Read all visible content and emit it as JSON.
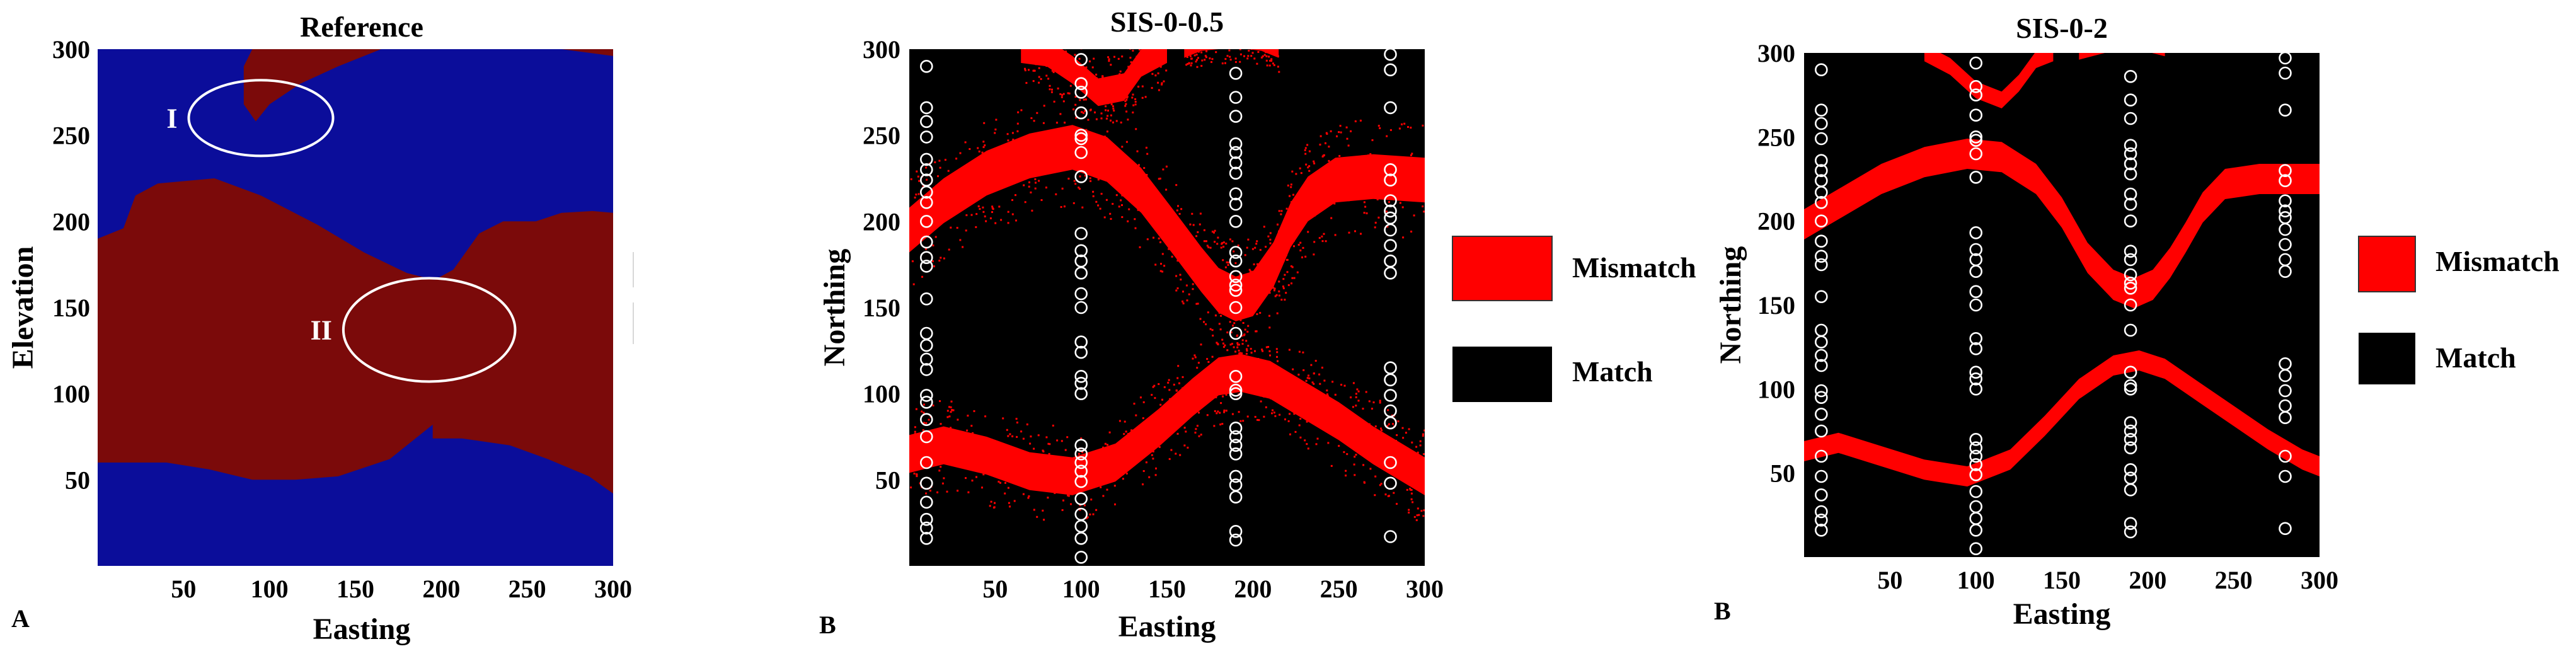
{
  "colors": {
    "blue_facies": "#0B0D9A",
    "red_facies": "#7B0A0A",
    "mismatch": "#FF0000",
    "match": "#000000",
    "wells": "#FFFFFF"
  },
  "panels": [
    {
      "id": "A",
      "letter": "A",
      "title": "Reference",
      "xlabel": "Easting",
      "ylabel": "Elevation",
      "xticks": [
        "50",
        "100",
        "150",
        "200",
        "250",
        "300"
      ],
      "yticks": [
        "50",
        "100",
        "150",
        "200",
        "250",
        "300"
      ],
      "regions": [
        {
          "label": "I",
          "center": [
            95,
            260
          ],
          "radius": [
            42,
            22
          ]
        },
        {
          "label": "II",
          "center": [
            193,
            137
          ],
          "radius": [
            50,
            30
          ]
        }
      ]
    },
    {
      "id": "B1",
      "letter": "B",
      "title": "SIS-0-0.5",
      "xlabel": "Easting",
      "ylabel": "Northing",
      "xticks": [
        "50",
        "100",
        "150",
        "200",
        "250",
        "300"
      ],
      "yticks": [
        "50",
        "100",
        "150",
        "200",
        "250",
        "300"
      ],
      "legend": [
        {
          "label": "Mismatch",
          "color": "#FF0000"
        },
        {
          "label": "Match",
          "color": "#000000"
        }
      ]
    },
    {
      "id": "B2",
      "letter": "B",
      "title": "SIS-0-2",
      "xlabel": "Easting",
      "ylabel": "Northing",
      "xticks": [
        "50",
        "100",
        "150",
        "200",
        "250",
        "300"
      ],
      "yticks": [
        "50",
        "100",
        "150",
        "200",
        "250",
        "300"
      ],
      "legend": [
        {
          "label": "Mismatch",
          "color": "#FF0000"
        },
        {
          "label": "Match",
          "color": "#000000"
        }
      ]
    }
  ],
  "chart_data": [
    {
      "type": "heatmap",
      "title": "Reference",
      "xlabel": "Easting",
      "ylabel": "Elevation",
      "xlim": [
        0,
        300
      ],
      "ylim": [
        0,
        300
      ],
      "categories": [
        "blue facies",
        "red facies"
      ],
      "annotations": [
        "I",
        "II"
      ],
      "red_regions": [
        {
          "name": "upper-left patch",
          "polygon": [
            [
              90,
              300
            ],
            [
              165,
              300
            ],
            [
              140,
              290
            ],
            [
              118,
              280
            ],
            [
              100,
              268
            ],
            [
              92,
              258
            ],
            [
              85,
              268
            ],
            [
              85,
              290
            ]
          ]
        },
        {
          "name": "upper-right strip",
          "polygon": [
            [
              270,
              300
            ],
            [
              300,
              300
            ],
            [
              300,
              296
            ]
          ]
        },
        {
          "name": "main body",
          "polygon": [
            [
              0,
              190
            ],
            [
              15,
              196
            ],
            [
              22,
              215
            ],
            [
              35,
              222
            ],
            [
              68,
              225
            ],
            [
              95,
              215
            ],
            [
              128,
              198
            ],
            [
              155,
              182
            ],
            [
              180,
              170
            ],
            [
              196,
              166
            ],
            [
              207,
              172
            ],
            [
              222,
              193
            ],
            [
              236,
              200
            ],
            [
              255,
              200
            ],
            [
              270,
              205
            ],
            [
              288,
              206
            ],
            [
              300,
              205
            ],
            [
              300,
              42
            ],
            [
              286,
              52
            ],
            [
              262,
              62
            ],
            [
              240,
              70
            ],
            [
              212,
              74
            ],
            [
              195,
              74
            ],
            [
              195,
              82
            ],
            [
              170,
              62
            ],
            [
              140,
              52
            ],
            [
              115,
              50
            ],
            [
              90,
              50
            ],
            [
              65,
              56
            ],
            [
              40,
              60
            ],
            [
              0,
              60
            ]
          ]
        }
      ]
    },
    {
      "type": "scatter",
      "title": "SIS-0-0.5",
      "xlabel": "Easting",
      "ylabel": "Northing",
      "xlim": [
        0,
        300
      ],
      "ylim": [
        0,
        300
      ],
      "legend": [
        "Mismatch",
        "Match"
      ],
      "mismatch_bands": [
        {
          "name": "top",
          "points": [
            [
              65,
              300
            ],
            [
              80,
              298
            ],
            [
              95,
              288
            ],
            [
              110,
              275
            ],
            [
              125,
              278
            ],
            [
              135,
              292
            ],
            [
              150,
              300
            ]
          ],
          "width": 16
        },
        {
          "name": "top-right",
          "points": [
            [
              160,
              300
            ],
            [
              170,
              304
            ],
            [
              190,
              306
            ],
            [
              205,
              304
            ],
            [
              215,
              300
            ]
          ],
          "width": 10
        },
        {
          "name": "upper",
          "points": [
            [
              0,
              195
            ],
            [
              20,
              212
            ],
            [
              45,
              228
            ],
            [
              70,
              238
            ],
            [
              95,
              243
            ],
            [
              115,
              236
            ],
            [
              135,
              218
            ],
            [
              155,
              192
            ],
            [
              170,
              172
            ],
            [
              180,
              160
            ],
            [
              190,
              155
            ],
            [
              200,
              158
            ],
            [
              212,
              175
            ],
            [
              222,
              198
            ],
            [
              232,
              213
            ],
            [
              248,
              224
            ],
            [
              270,
              226
            ],
            [
              300,
              224
            ]
          ],
          "width": 26
        },
        {
          "name": "lower",
          "points": [
            [
              0,
              65
            ],
            [
              20,
              70
            ],
            [
              45,
              64
            ],
            [
              70,
              55
            ],
            [
              95,
              52
            ],
            [
              120,
              60
            ],
            [
              145,
              80
            ],
            [
              165,
              98
            ],
            [
              180,
              110
            ],
            [
              193,
              112
            ],
            [
              210,
              108
            ],
            [
              230,
              96
            ],
            [
              250,
              84
            ],
            [
              270,
              70
            ],
            [
              290,
              58
            ],
            [
              300,
              52
            ]
          ],
          "width": 22
        }
      ],
      "wells": [
        {
          "x": 10,
          "y": [
            16,
            22,
            27,
            37,
            48,
            60,
            75,
            85,
            95,
            99,
            114,
            120,
            128,
            135,
            155,
            174,
            179,
            188,
            200,
            211,
            217,
            224,
            230,
            236,
            249,
            258,
            266,
            290
          ]
        },
        {
          "x": 100,
          "y": [
            5,
            16,
            23,
            30,
            39,
            49,
            55,
            60,
            65,
            70,
            100,
            106,
            110,
            124,
            130,
            150,
            158,
            170,
            177,
            183,
            193,
            226,
            240,
            248,
            250,
            263,
            275,
            280,
            294
          ]
        },
        {
          "x": 190,
          "y": [
            15,
            20,
            40,
            47,
            52,
            65,
            70,
            75,
            80,
            100,
            102,
            110,
            135,
            150,
            160,
            163,
            168,
            177,
            182,
            200,
            210,
            216,
            228,
            234,
            240,
            245,
            261,
            272,
            286
          ]
        },
        {
          "x": 280,
          "y": [
            17,
            48,
            60,
            83,
            90,
            99,
            108,
            115,
            170,
            177,
            186,
            195,
            202,
            206,
            212,
            224,
            230,
            266,
            288,
            297
          ]
        }
      ]
    },
    {
      "type": "scatter",
      "title": "SIS-0-2",
      "xlabel": "Easting",
      "ylabel": "Northing",
      "xlim": [
        0,
        300
      ],
      "ylim": [
        0,
        300
      ],
      "legend": [
        "Mismatch",
        "Match"
      ],
      "mismatch_bands": [
        {
          "name": "top",
          "points": [
            [
              70,
              300
            ],
            [
              85,
              292
            ],
            [
              100,
              278
            ],
            [
              115,
              272
            ],
            [
              125,
              282
            ],
            [
              135,
              296
            ],
            [
              145,
              300
            ]
          ],
          "width": 10
        },
        {
          "name": "top-right",
          "points": [
            [
              160,
              300
            ],
            [
              175,
              304
            ],
            [
              195,
              306
            ],
            [
              210,
              302
            ]
          ],
          "width": 8
        },
        {
          "name": "upper",
          "points": [
            [
              0,
              198
            ],
            [
              20,
              210
            ],
            [
              45,
              225
            ],
            [
              70,
              235
            ],
            [
              95,
              240
            ],
            [
              115,
              238
            ],
            [
              135,
              225
            ],
            [
              150,
              205
            ],
            [
              165,
              178
            ],
            [
              180,
              162
            ],
            [
              192,
              157
            ],
            [
              203,
              162
            ],
            [
              213,
              175
            ],
            [
              222,
              190
            ],
            [
              232,
              208
            ],
            [
              245,
              222
            ],
            [
              265,
              225
            ],
            [
              300,
              225
            ]
          ],
          "width": 18
        },
        {
          "name": "lower",
          "points": [
            [
              0,
              63
            ],
            [
              20,
              68
            ],
            [
              45,
              60
            ],
            [
              70,
              52
            ],
            [
              95,
              48
            ],
            [
              120,
              58
            ],
            [
              140,
              78
            ],
            [
              160,
              100
            ],
            [
              180,
              114
            ],
            [
              195,
              117
            ],
            [
              210,
              112
            ],
            [
              230,
              98
            ],
            [
              250,
              84
            ],
            [
              270,
              70
            ],
            [
              290,
              58
            ],
            [
              300,
              54
            ]
          ],
          "width": 12
        }
      ],
      "wells": [
        {
          "x": 10,
          "y": [
            16,
            22,
            27,
            37,
            48,
            60,
            75,
            85,
            95,
            99,
            114,
            120,
            128,
            135,
            155,
            174,
            179,
            188,
            200,
            211,
            217,
            224,
            230,
            236,
            249,
            258,
            266,
            290
          ]
        },
        {
          "x": 100,
          "y": [
            5,
            16,
            23,
            30,
            39,
            49,
            55,
            60,
            65,
            70,
            100,
            106,
            110,
            124,
            130,
            150,
            158,
            170,
            177,
            183,
            193,
            226,
            240,
            248,
            250,
            263,
            275,
            280,
            294
          ]
        },
        {
          "x": 190,
          "y": [
            15,
            20,
            40,
            47,
            52,
            65,
            70,
            75,
            80,
            100,
            102,
            110,
            135,
            150,
            160,
            163,
            168,
            177,
            182,
            200,
            210,
            216,
            228,
            234,
            240,
            245,
            261,
            272,
            286
          ]
        },
        {
          "x": 280,
          "y": [
            17,
            48,
            60,
            83,
            90,
            99,
            108,
            115,
            170,
            177,
            186,
            195,
            202,
            206,
            212,
            224,
            230,
            266,
            288,
            297
          ]
        }
      ]
    }
  ]
}
